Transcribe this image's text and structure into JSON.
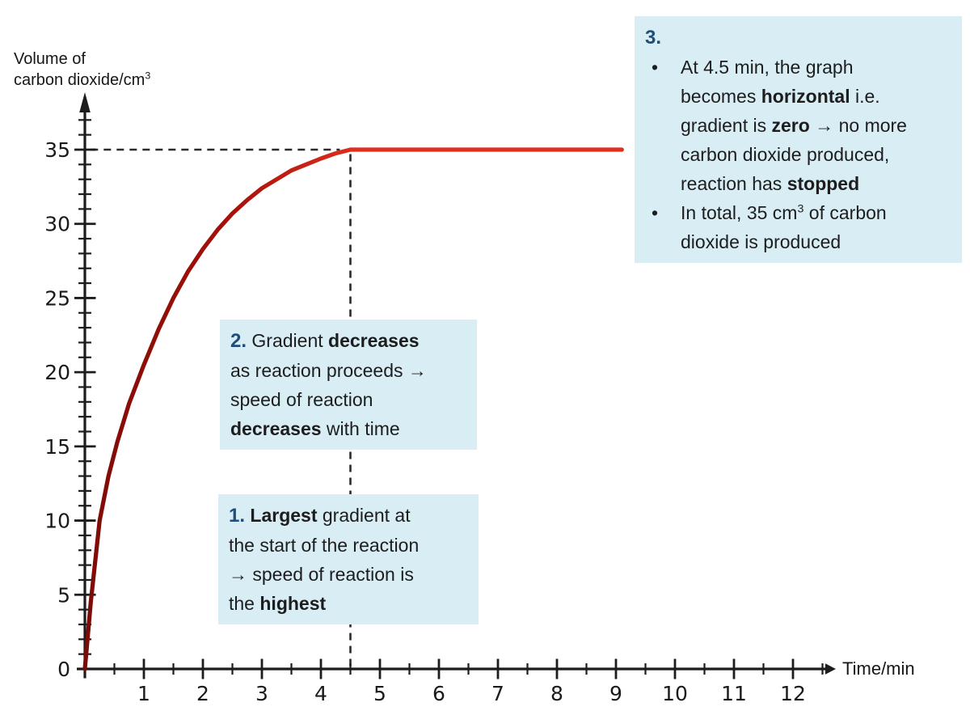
{
  "colors": {
    "note_bg": "#d9edf5",
    "number_navy": "#1f4e79",
    "axis": "#1c1c1c",
    "dashed": "#2b2b2b",
    "curve_gradient": [
      "#7c0b07",
      "#a81109",
      "#df2f1f"
    ],
    "body_text": "#1d1d1d"
  },
  "axes": {
    "y_title_line1": "Volume of",
    "y_title_line2": "carbon dioxide/cm",
    "y_title_sup": "3",
    "x_title": "Time/min"
  },
  "chart_data": {
    "type": "line",
    "xlabel": "Time/min",
    "ylabel": "Volume of carbon dioxide/cm³",
    "xlim": [
      0,
      12.5
    ],
    "ylim": [
      0,
      37
    ],
    "grid": false,
    "x_major_ticks": [
      1,
      2,
      3,
      4,
      5,
      6,
      7,
      8,
      9,
      10,
      11,
      12
    ],
    "x_minor_tick_step": 0.5,
    "y_major_ticks": [
      0,
      5,
      10,
      15,
      20,
      25,
      30,
      35
    ],
    "y_minor_tick_step": 1,
    "y_minor_tick_max": 37,
    "series": [
      {
        "name": "volume of carbon dioxide",
        "points": [
          [
            0,
            0
          ],
          [
            0.1,
            4.5
          ],
          [
            0.25,
            10
          ],
          [
            0.4,
            13
          ],
          [
            0.55,
            15.3
          ],
          [
            0.75,
            17.9
          ],
          [
            1,
            20.5
          ],
          [
            1.25,
            22.9
          ],
          [
            1.5,
            25
          ],
          [
            1.75,
            26.8
          ],
          [
            2,
            28.3
          ],
          [
            2.25,
            29.6
          ],
          [
            2.5,
            30.7
          ],
          [
            2.75,
            31.6
          ],
          [
            3,
            32.4
          ],
          [
            3.25,
            33
          ],
          [
            3.5,
            33.6
          ],
          [
            3.75,
            34
          ],
          [
            4,
            34.4
          ],
          [
            4.25,
            34.75
          ],
          [
            4.5,
            35
          ],
          [
            5.5,
            35
          ],
          [
            7,
            35
          ],
          [
            9.1,
            35
          ]
        ]
      }
    ],
    "reference_lines": [
      {
        "orientation": "horizontal",
        "value": 35,
        "style": "dashed",
        "x_range": [
          0.1,
          4.32
        ]
      },
      {
        "orientation": "vertical",
        "value": 4.5,
        "style": "dashed",
        "y_range": [
          0.05,
          34.7
        ]
      }
    ],
    "plateau": {
      "start_time_min": 4.5,
      "final_volume_cm3": 35
    }
  },
  "annotations": {
    "bullet_char": "•",
    "box1": {
      "rows": [
        {
          "segs": [
            {
              "t": "1.",
              "style": "num"
            },
            {
              "t": " "
            },
            {
              "t": "Largest",
              "style": "b"
            },
            {
              "t": " gradient at"
            }
          ]
        },
        {
          "segs": [
            {
              "t": "the start of the reaction"
            }
          ]
        },
        {
          "segs": [
            {
              "t": "→ speed of reaction is"
            }
          ]
        },
        {
          "segs": [
            {
              "t": "the "
            },
            {
              "t": "highest",
              "style": "b"
            }
          ]
        }
      ]
    },
    "box2": {
      "rows": [
        {
          "segs": [
            {
              "t": "2.",
              "style": "num"
            },
            {
              "t": " Gradient "
            },
            {
              "t": "decreases",
              "style": "b"
            }
          ]
        },
        {
          "segs": [
            {
              "t": "as reaction proceeds →"
            }
          ]
        },
        {
          "segs": [
            {
              "t": "speed of reaction"
            }
          ]
        },
        {
          "segs": [
            {
              "t": "decreases",
              "style": "b"
            },
            {
              "t": " with time"
            }
          ]
        }
      ]
    },
    "box3": {
      "rows": [
        {
          "segs": [
            {
              "t": "3.",
              "style": "num"
            }
          ]
        },
        {
          "bullet": true,
          "segs": [
            {
              "t": "At 4.5 min, the graph"
            }
          ]
        },
        {
          "indent": true,
          "segs": [
            {
              "t": "becomes "
            },
            {
              "t": "horizontal",
              "style": "b"
            },
            {
              "t": " i.e."
            }
          ]
        },
        {
          "indent": true,
          "segs": [
            {
              "t": "gradient is "
            },
            {
              "t": "zero",
              "style": "b"
            },
            {
              "t": " "
            },
            {
              "t": "→",
              "style": "b"
            },
            {
              "t": " no more"
            }
          ]
        },
        {
          "indent": true,
          "segs": [
            {
              "t": "carbon dioxide produced,"
            }
          ]
        },
        {
          "indent": true,
          "segs": [
            {
              "t": "reaction has "
            },
            {
              "t": "stopped",
              "style": "b"
            }
          ]
        },
        {
          "bullet": true,
          "segs": [
            {
              "t": "In total, 35 cm"
            },
            {
              "t": "3",
              "style": "sup"
            },
            {
              "t": " of carbon"
            }
          ]
        },
        {
          "indent": true,
          "segs": [
            {
              "t": "dioxide is produced"
            }
          ]
        }
      ]
    }
  }
}
